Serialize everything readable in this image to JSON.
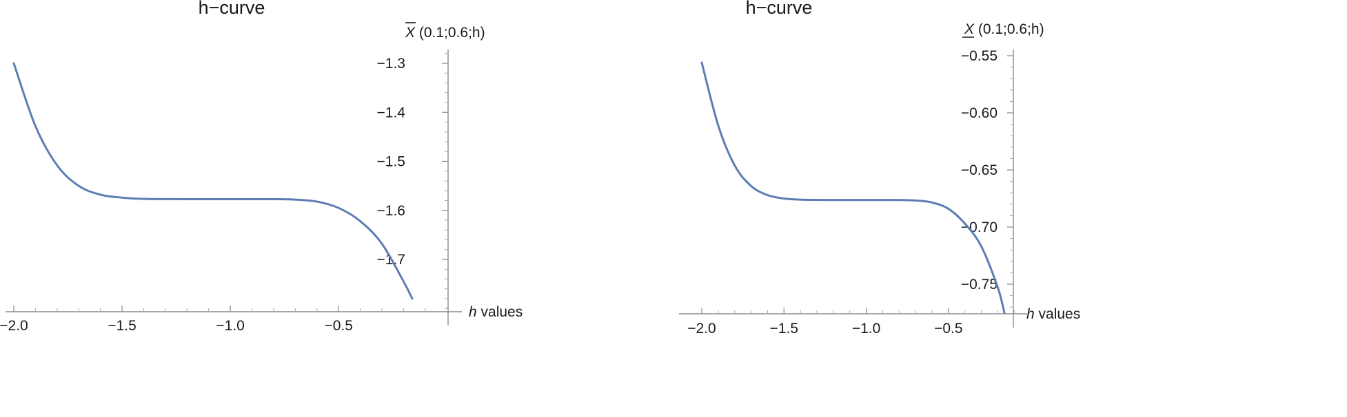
{
  "chart_data": [
    {
      "type": "line",
      "title": "h−curve",
      "xlabel_var": "h",
      "xlabel_rest": " values",
      "ylabel_symbol": "X",
      "ylabel_args": " (0.1;0.6;h)",
      "ylabel_bar": "over",
      "xlim": [
        -2.0,
        -0.0
      ],
      "ylim": [
        -1.78,
        -1.27
      ],
      "x_axis_at_y": -1.8,
      "x_ticks": [
        -2.0,
        -1.5,
        -1.0,
        -0.5
      ],
      "x_tick_labels": [
        "−2.0",
        "−1.5",
        "−1.0",
        "−0.5"
      ],
      "y_ticks": [
        -1.3,
        -1.4,
        -1.5,
        -1.6,
        -1.7
      ],
      "y_tick_labels": [
        "−1.3",
        "−1.4",
        "−1.5",
        "−1.6",
        "−1.7"
      ],
      "color": "#5b7db3",
      "series": [
        {
          "x": [
            -2.0,
            -1.9,
            -1.8,
            -1.7,
            -1.6,
            -1.5,
            -1.4,
            -1.3,
            -1.2,
            -1.1,
            -1.0,
            -0.9,
            -0.8,
            -0.7,
            -0.6,
            -0.5,
            -0.4,
            -0.3,
            -0.2,
            -0.16
          ],
          "y": [
            -1.3,
            -1.428,
            -1.508,
            -1.55,
            -1.568,
            -1.574,
            -1.5765,
            -1.577,
            -1.5772,
            -1.5772,
            -1.5772,
            -1.5772,
            -1.5772,
            -1.578,
            -1.582,
            -1.595,
            -1.622,
            -1.668,
            -1.745,
            -1.78
          ]
        }
      ]
    },
    {
      "type": "line",
      "title": "h−curve",
      "xlabel_var": "h",
      "xlabel_rest": " values",
      "ylabel_symbol": "X",
      "ylabel_args": " (0.1;0.6;h)",
      "ylabel_bar": "under",
      "xlim": [
        -2.0,
        -0.0
      ],
      "ylim": [
        -0.775,
        -0.553
      ],
      "x_axis_at_y": -0.78,
      "x_ticks": [
        -2.0,
        -1.5,
        -1.0,
        -0.5
      ],
      "x_tick_labels": [
        "−2.0",
        "−1.5",
        "−1.0",
        "−0.5"
      ],
      "y_ticks": [
        -0.55,
        -0.6,
        -0.65,
        -0.7,
        -0.75
      ],
      "y_tick_labels": [
        "−0.55",
        "−0.60",
        "−0.65",
        "−0.70",
        "−0.75"
      ],
      "color": "#5b7db3",
      "series": [
        {
          "x": [
            -2.0,
            -1.9,
            -1.8,
            -1.7,
            -1.6,
            -1.5,
            -1.4,
            -1.3,
            -1.2,
            -1.1,
            -1.0,
            -0.9,
            -0.8,
            -0.7,
            -0.6,
            -0.5,
            -0.4,
            -0.3,
            -0.2,
            -0.16
          ],
          "y": [
            -0.556,
            -0.611,
            -0.646,
            -0.664,
            -0.672,
            -0.675,
            -0.676,
            -0.6762,
            -0.6763,
            -0.6763,
            -0.6763,
            -0.6763,
            -0.6763,
            -0.6767,
            -0.6785,
            -0.684,
            -0.697,
            -0.717,
            -0.753,
            -0.775
          ]
        }
      ]
    }
  ]
}
